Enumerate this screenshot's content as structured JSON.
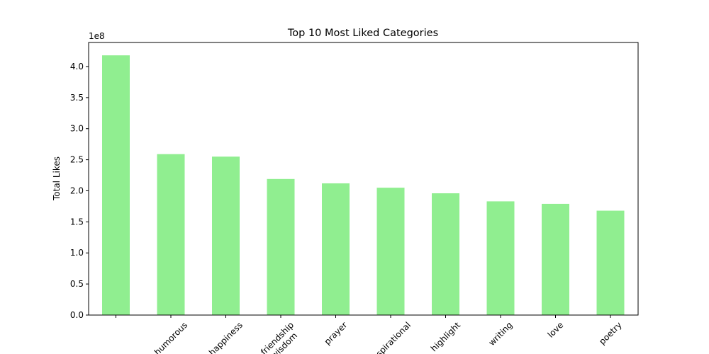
{
  "chart_data": {
    "type": "bar",
    "title": "Top 10 Most Liked Categories",
    "ylabel": "Total Likes",
    "offset_text": "1e8",
    "categories": [
      null,
      "humorous",
      "happiness",
      "friendship\nwisdom",
      "prayer",
      "inspirational",
      "highlight",
      "writing",
      "love",
      "poetry"
    ],
    "values": [
      418000000,
      259000000,
      255000000,
      219000000,
      212000000,
      205000000,
      196000000,
      183000000,
      179000000,
      168000000
    ],
    "color": "#90ee90",
    "ylim": [
      0,
      438700000
    ],
    "yticks": [
      {
        "value": 0,
        "label": "0.0"
      },
      {
        "value": 50000000,
        "label": "0.5"
      },
      {
        "value": 100000000,
        "label": "1.0"
      },
      {
        "value": 150000000,
        "label": "1.5"
      },
      {
        "value": 200000000,
        "label": "2.0"
      },
      {
        "value": 250000000,
        "label": "2.5"
      },
      {
        "value": 300000000,
        "label": "3.0"
      },
      {
        "value": 350000000,
        "label": "3.5"
      },
      {
        "value": 400000000,
        "label": "4.0"
      }
    ],
    "grid": false
  }
}
